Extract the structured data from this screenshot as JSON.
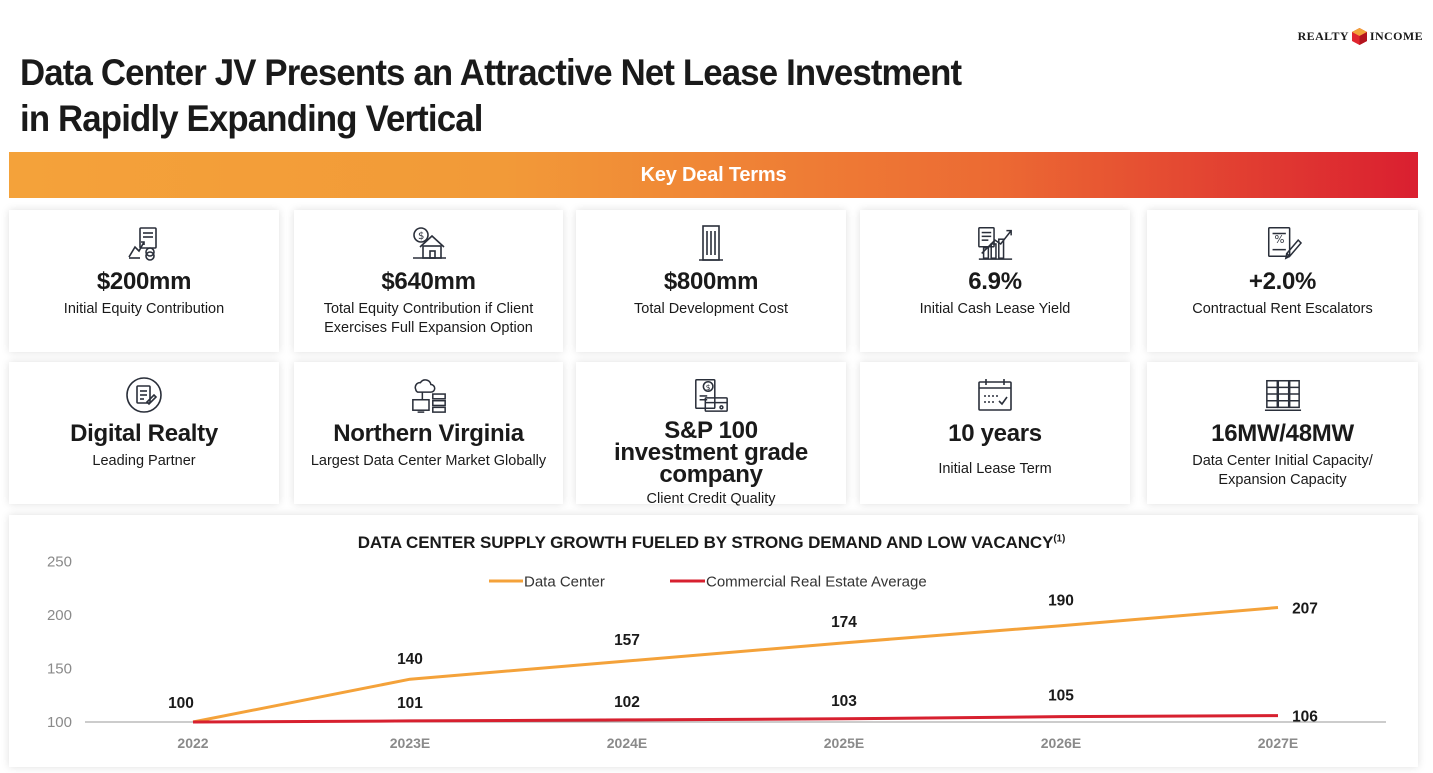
{
  "logo": {
    "left_text": "REALTY",
    "right_text": "INCOME"
  },
  "title_line1": "Data Center JV Presents an Attractive Net Lease Investment",
  "title_line2": "in Rapidly Expanding Vertical",
  "banner": "Key Deal Terms",
  "cards": [
    {
      "icon": "investment-chart-icon",
      "value": "$200mm",
      "label": "Initial Equity Contribution"
    },
    {
      "icon": "house-dollar-icon",
      "value": "$640mm",
      "label": "Total Equity Contribution if Client Exercises Full Expansion Option"
    },
    {
      "icon": "office-building-icon",
      "value": "$800mm",
      "label": "Total Development Cost"
    },
    {
      "icon": "growth-chart-icon",
      "value": "6.9%",
      "label": "Initial Cash Lease Yield"
    },
    {
      "icon": "contract-percent-icon",
      "value": "+2.0%",
      "label": "Contractual Rent Escalators"
    },
    {
      "icon": "partner-document-icon",
      "value": "Digital Realty",
      "label": "Leading Partner"
    },
    {
      "icon": "data-center-network-icon",
      "value": "Northern Virginia",
      "label": "Largest Data Center Market Globally"
    },
    {
      "icon": "credit-card-bill-icon",
      "value": "S&P 100 investment grade company",
      "label": "Client Credit Quality"
    },
    {
      "icon": "calendar-icon",
      "value": "10 years",
      "label": "Initial Lease Term"
    },
    {
      "icon": "server-rack-icon",
      "value": "16MW/48MW",
      "label": "Data Center Initial Capacity/ Expansion Capacity"
    }
  ],
  "colors": {
    "data_center": "#f4a23a",
    "commercial": "#d7202f",
    "axis_text": "#8a8a8a"
  },
  "chart_data": {
    "type": "line",
    "title": "DATA CENTER SUPPLY GROWTH FUELED BY STRONG DEMAND AND LOW VACANCY",
    "title_superscript": "(1)",
    "categories": [
      "2022",
      "2023E",
      "2024E",
      "2025E",
      "2026E",
      "2027E"
    ],
    "ylim": [
      100,
      250
    ],
    "yticks": [
      "100",
      "150",
      "200",
      "250"
    ],
    "legend_position": "top-center",
    "grid": false,
    "series": [
      {
        "name": "Data Center",
        "values": [
          100,
          140,
          157,
          174,
          190,
          207
        ]
      },
      {
        "name": "Commercial Real Estate Average",
        "values": [
          100,
          101,
          102,
          103,
          105,
          106
        ]
      }
    ]
  }
}
